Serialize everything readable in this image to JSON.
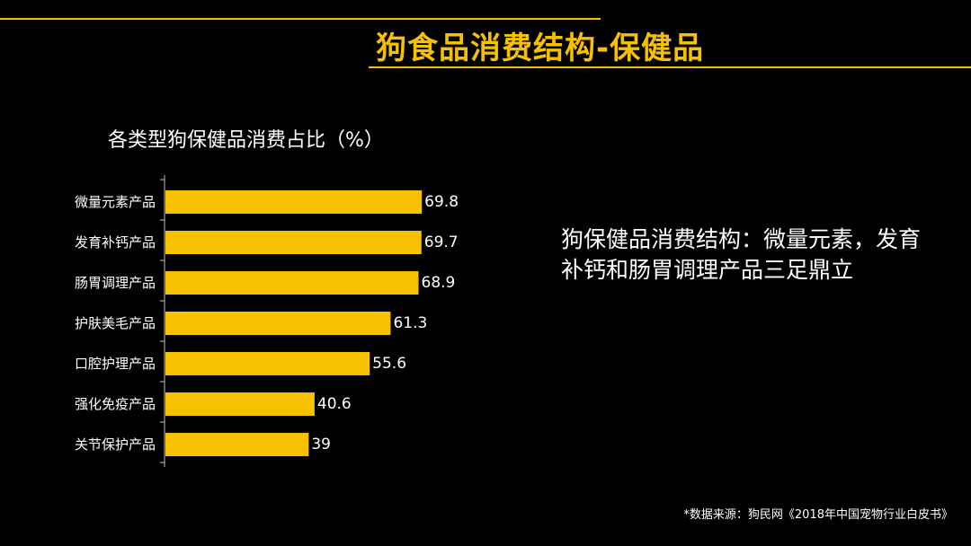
{
  "slide": {
    "title": "狗食品消费结构-保健品",
    "summary": "狗保健品消费结构：微量元素，发育补钙和肠胃调理产品三足鼎立",
    "source": "*数据来源：狗民网《2018年中国宠物行业白皮书》"
  },
  "colors": {
    "accent": "#f7c100",
    "background": "#000000",
    "text": "#ffffff"
  },
  "chart_data": {
    "type": "bar",
    "orientation": "horizontal",
    "title": "各类型狗保健品消费占比（%）",
    "categories": [
      "微量元素产品",
      "发育补钙产品",
      "肠胃调理产品",
      "护肤美毛产品",
      "口腔护理产品",
      "强化免疫产品",
      "关节保护产品"
    ],
    "values": [
      69.8,
      69.7,
      68.9,
      61.3,
      55.6,
      40.6,
      39
    ],
    "value_labels": [
      "69.8",
      "69.7",
      "68.9",
      "61.3",
      "55.6",
      "40.6",
      "39"
    ],
    "xlim": [
      0,
      70
    ],
    "xlabel": "",
    "ylabel": "",
    "grid": false,
    "legend": "none"
  }
}
